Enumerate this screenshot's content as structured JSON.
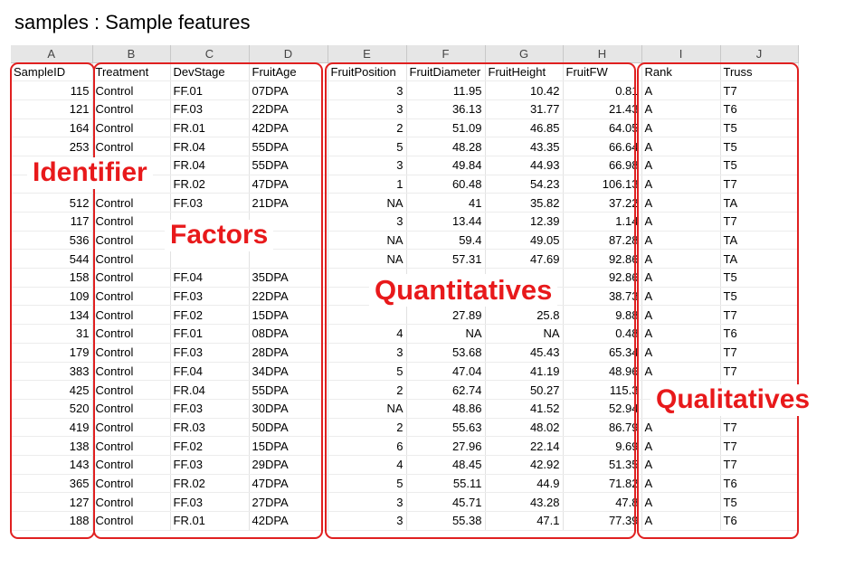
{
  "title": "samples : Sample features",
  "column_letters": [
    "A",
    "B",
    "C",
    "D",
    "E",
    "F",
    "G",
    "H",
    "I",
    "J"
  ],
  "headers": [
    "SampleID",
    "Treatment",
    "DevStage",
    "FruitAge",
    "FruitPosition",
    "FruitDiameter",
    "FruitHeight",
    "FruitFW",
    "Rank",
    "Truss"
  ],
  "rows": [
    [
      "115",
      "Control",
      "FF.01",
      "07DPA",
      "3",
      "11.95",
      "10.42",
      "0.81",
      "A",
      "T7"
    ],
    [
      "121",
      "Control",
      "FF.03",
      "22DPA",
      "3",
      "36.13",
      "31.77",
      "21.43",
      "A",
      "T6"
    ],
    [
      "164",
      "Control",
      "FR.01",
      "42DPA",
      "2",
      "51.09",
      "46.85",
      "64.05",
      "A",
      "T5"
    ],
    [
      "253",
      "Control",
      "FR.04",
      "55DPA",
      "5",
      "48.28",
      "43.35",
      "66.64",
      "A",
      "T5"
    ],
    [
      "",
      "Control",
      "FR.04",
      "55DPA",
      "3",
      "49.84",
      "44.93",
      "66.98",
      "A",
      "T5"
    ],
    [
      "",
      "Control",
      "FR.02",
      "47DPA",
      "1",
      "60.48",
      "54.23",
      "106.13",
      "A",
      "T7"
    ],
    [
      "512",
      "Control",
      "FF.03",
      "21DPA",
      "NA",
      "41",
      "35.82",
      "37.22",
      "A",
      "TA"
    ],
    [
      "117",
      "Control",
      "",
      "",
      "3",
      "13.44",
      "12.39",
      "1.14",
      "A",
      "T7"
    ],
    [
      "536",
      "Control",
      "",
      "",
      "NA",
      "59.4",
      "49.05",
      "87.28",
      "A",
      "TA"
    ],
    [
      "544",
      "Control",
      "",
      "",
      "NA",
      "57.31",
      "47.69",
      "92.86",
      "A",
      "TA"
    ],
    [
      "158",
      "Control",
      "FF.04",
      "35DPA",
      "",
      "",
      "",
      "92.86",
      "A",
      "T5"
    ],
    [
      "109",
      "Control",
      "FF.03",
      "22DPA",
      "",
      "",
      "",
      "38.73",
      "A",
      "T5"
    ],
    [
      "134",
      "Control",
      "FF.02",
      "15DPA",
      "",
      "27.89",
      "25.8",
      "9.88",
      "A",
      "T7"
    ],
    [
      "31",
      "Control",
      "FF.01",
      "08DPA",
      "4",
      "NA",
      "NA",
      "0.48",
      "A",
      "T6"
    ],
    [
      "179",
      "Control",
      "FF.03",
      "28DPA",
      "3",
      "53.68",
      "45.43",
      "65.34",
      "A",
      "T7"
    ],
    [
      "383",
      "Control",
      "FF.04",
      "34DPA",
      "5",
      "47.04",
      "41.19",
      "48.96",
      "A",
      "T7"
    ],
    [
      "425",
      "Control",
      "FR.04",
      "55DPA",
      "2",
      "62.74",
      "50.27",
      "115.3",
      "",
      ""
    ],
    [
      "520",
      "Control",
      "FF.03",
      "30DPA",
      "NA",
      "48.86",
      "41.52",
      "52.94",
      "",
      ""
    ],
    [
      "419",
      "Control",
      "FR.03",
      "50DPA",
      "2",
      "55.63",
      "48.02",
      "86.79",
      "A",
      "T7"
    ],
    [
      "138",
      "Control",
      "FF.02",
      "15DPA",
      "6",
      "27.96",
      "22.14",
      "9.69",
      "A",
      "T7"
    ],
    [
      "143",
      "Control",
      "FF.03",
      "29DPA",
      "4",
      "48.45",
      "42.92",
      "51.35",
      "A",
      "T7"
    ],
    [
      "365",
      "Control",
      "FR.02",
      "47DPA",
      "5",
      "55.11",
      "44.9",
      "71.82",
      "A",
      "T6"
    ],
    [
      "127",
      "Control",
      "FF.03",
      "27DPA",
      "3",
      "45.71",
      "43.28",
      "47.8",
      "A",
      "T5"
    ],
    [
      "188",
      "Control",
      "FR.01",
      "42DPA",
      "3",
      "55.38",
      "47.1",
      "77.39",
      "A",
      "T6"
    ]
  ],
  "column_align": [
    "num",
    "txt",
    "txt",
    "txt",
    "num",
    "num",
    "num",
    "num",
    "txt",
    "txt"
  ],
  "labels": {
    "identifier": "Identifier",
    "factors": "Factors",
    "quantitatives": "Quantitatives",
    "qualitatives": "Qualitatives"
  },
  "colors": {
    "annotation": "#e8191b",
    "box_border": "#e02020",
    "header_bg": "#e6e6e6"
  }
}
